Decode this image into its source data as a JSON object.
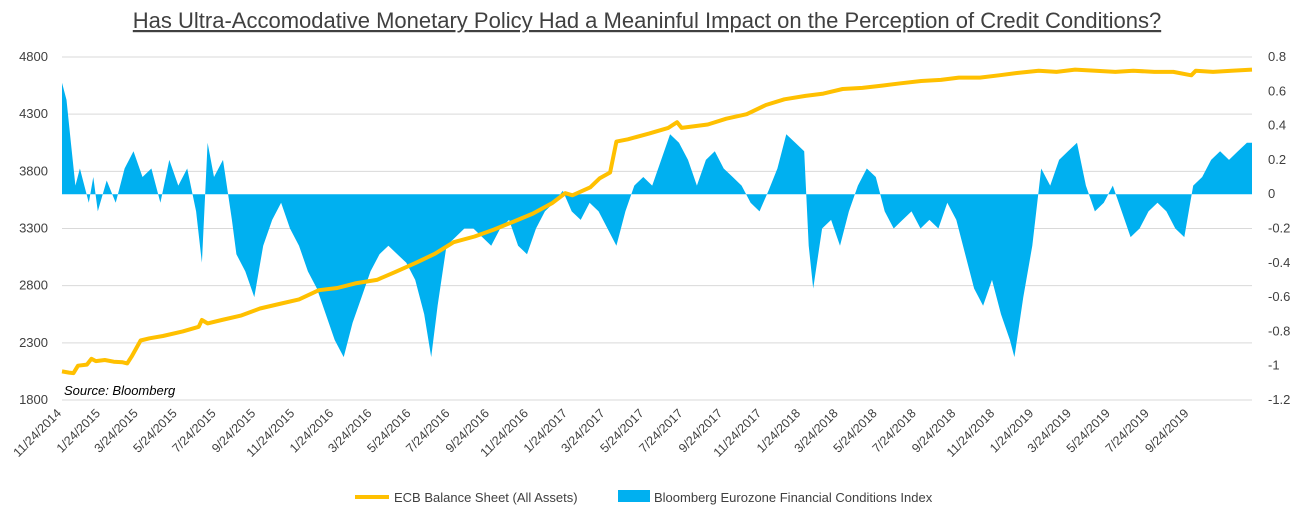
{
  "chart_data": {
    "type": "line",
    "title": "Has Ultra-Accomodative Monetary Policy Had a Meaninful Impact on the Perception of Credit Conditions?",
    "source": "Source: Bloomberg",
    "y_left": {
      "min": 1800,
      "max": 4800,
      "ticks": [
        "4800",
        "4300",
        "3800",
        "3300",
        "2800",
        "2300",
        "1800"
      ]
    },
    "y_right": {
      "min": -1.2,
      "max": 0.8,
      "ticks": [
        "0.8",
        "0.6",
        "0.4",
        "0.2",
        "0",
        "-0.2",
        "-0.4",
        "-0.6",
        "-0.8",
        "-1",
        "-1.2"
      ]
    },
    "x_start": "2014-11-24",
    "x_end": "2019-12-31",
    "x_ticks": [
      "11/24/2014",
      "1/24/2015",
      "3/24/2015",
      "5/24/2015",
      "7/24/2015",
      "9/24/2015",
      "11/24/2015",
      "1/24/2016",
      "3/24/2016",
      "5/24/2016",
      "7/24/2016",
      "9/24/2016",
      "11/24/2016",
      "1/24/2017",
      "3/24/2017",
      "5/24/2017",
      "7/24/2017",
      "9/24/2017",
      "11/24/2017",
      "1/24/2018",
      "3/24/2018",
      "5/24/2018",
      "7/24/2018",
      "9/24/2018",
      "11/24/2018",
      "1/24/2019",
      "3/24/2019",
      "5/24/2019",
      "7/24/2019",
      "9/24/2019"
    ],
    "series": [
      {
        "name": "ECB Balance Sheet (All Assets)",
        "axis": "left",
        "color": "#FFC000",
        "points": [
          [
            "2014-11-24",
            2050
          ],
          [
            "2014-12-05",
            2040
          ],
          [
            "2014-12-12",
            2035
          ],
          [
            "2014-12-19",
            2100
          ],
          [
            "2015-01-02",
            2110
          ],
          [
            "2015-01-09",
            2160
          ],
          [
            "2015-01-16",
            2140
          ],
          [
            "2015-01-30",
            2150
          ],
          [
            "2015-02-13",
            2135
          ],
          [
            "2015-02-27",
            2130
          ],
          [
            "2015-03-06",
            2120
          ],
          [
            "2015-03-13",
            2180
          ],
          [
            "2015-03-27",
            2320
          ],
          [
            "2015-04-10",
            2340
          ],
          [
            "2015-05-01",
            2360
          ],
          [
            "2015-06-01",
            2400
          ],
          [
            "2015-06-26",
            2440
          ],
          [
            "2015-07-01",
            2500
          ],
          [
            "2015-07-10",
            2470
          ],
          [
            "2015-08-01",
            2500
          ],
          [
            "2015-09-01",
            2540
          ],
          [
            "2015-09-30",
            2600
          ],
          [
            "2015-10-30",
            2640
          ],
          [
            "2015-11-30",
            2680
          ],
          [
            "2015-12-31",
            2760
          ],
          [
            "2016-01-29",
            2780
          ],
          [
            "2016-02-26",
            2820
          ],
          [
            "2016-03-31",
            2850
          ],
          [
            "2016-04-29",
            2920
          ],
          [
            "2016-05-31",
            3000
          ],
          [
            "2016-06-30",
            3080
          ],
          [
            "2016-07-29",
            3180
          ],
          [
            "2016-08-31",
            3230
          ],
          [
            "2016-09-30",
            3290
          ],
          [
            "2016-10-31",
            3360
          ],
          [
            "2016-11-30",
            3430
          ],
          [
            "2016-12-30",
            3520
          ],
          [
            "2017-01-20",
            3610
          ],
          [
            "2017-01-31",
            3590
          ],
          [
            "2017-02-28",
            3660
          ],
          [
            "2017-03-15",
            3740
          ],
          [
            "2017-03-31",
            3790
          ],
          [
            "2017-04-10",
            4060
          ],
          [
            "2017-04-28",
            4080
          ],
          [
            "2017-05-31",
            4130
          ],
          [
            "2017-06-30",
            4180
          ],
          [
            "2017-07-14",
            4230
          ],
          [
            "2017-07-21",
            4180
          ],
          [
            "2017-08-31",
            4210
          ],
          [
            "2017-09-29",
            4260
          ],
          [
            "2017-10-31",
            4300
          ],
          [
            "2017-11-30",
            4380
          ],
          [
            "2017-12-29",
            4430
          ],
          [
            "2018-01-31",
            4460
          ],
          [
            "2018-02-28",
            4480
          ],
          [
            "2018-03-30",
            4520
          ],
          [
            "2018-04-30",
            4530
          ],
          [
            "2018-05-31",
            4550
          ],
          [
            "2018-06-29",
            4570
          ],
          [
            "2018-07-31",
            4590
          ],
          [
            "2018-08-31",
            4600
          ],
          [
            "2018-09-28",
            4620
          ],
          [
            "2018-10-31",
            4620
          ],
          [
            "2018-11-30",
            4640
          ],
          [
            "2018-12-28",
            4660
          ],
          [
            "2019-01-31",
            4680
          ],
          [
            "2019-02-28",
            4670
          ],
          [
            "2019-03-29",
            4690
          ],
          [
            "2019-04-30",
            4680
          ],
          [
            "2019-05-31",
            4670
          ],
          [
            "2019-06-28",
            4680
          ],
          [
            "2019-07-31",
            4670
          ],
          [
            "2019-08-30",
            4670
          ],
          [
            "2019-09-27",
            4640
          ],
          [
            "2019-10-04",
            4680
          ],
          [
            "2019-10-31",
            4670
          ],
          [
            "2019-11-29",
            4680
          ],
          [
            "2019-12-31",
            4690
          ]
        ]
      },
      {
        "name": "Bloomberg Eurozone Financial Conditions Index",
        "axis": "right",
        "color": "#00B0F0",
        "points": [
          [
            "2014-11-24",
            0.65
          ],
          [
            "2014-12-01",
            0.55
          ],
          [
            "2014-12-08",
            0.3
          ],
          [
            "2014-12-15",
            0.05
          ],
          [
            "2014-12-22",
            0.15
          ],
          [
            "2015-01-05",
            -0.05
          ],
          [
            "2015-01-12",
            0.1
          ],
          [
            "2015-01-19",
            -0.1
          ],
          [
            "2015-02-02",
            0.08
          ],
          [
            "2015-02-16",
            -0.05
          ],
          [
            "2015-03-02",
            0.15
          ],
          [
            "2015-03-16",
            0.25
          ],
          [
            "2015-03-30",
            0.1
          ],
          [
            "2015-04-13",
            0.15
          ],
          [
            "2015-04-27",
            -0.05
          ],
          [
            "2015-05-11",
            0.2
          ],
          [
            "2015-05-25",
            0.05
          ],
          [
            "2015-06-08",
            0.15
          ],
          [
            "2015-06-22",
            -0.1
          ],
          [
            "2015-07-01",
            -0.4
          ],
          [
            "2015-07-10",
            0.3
          ],
          [
            "2015-07-20",
            0.1
          ],
          [
            "2015-08-03",
            0.2
          ],
          [
            "2015-08-17",
            -0.15
          ],
          [
            "2015-08-24",
            -0.35
          ],
          [
            "2015-09-07",
            -0.45
          ],
          [
            "2015-09-21",
            -0.6
          ],
          [
            "2015-10-05",
            -0.3
          ],
          [
            "2015-10-19",
            -0.15
          ],
          [
            "2015-11-02",
            -0.05
          ],
          [
            "2015-11-16",
            -0.2
          ],
          [
            "2015-11-30",
            -0.3
          ],
          [
            "2015-12-14",
            -0.45
          ],
          [
            "2015-12-28",
            -0.55
          ],
          [
            "2016-01-11",
            -0.7
          ],
          [
            "2016-01-25",
            -0.85
          ],
          [
            "2016-02-08",
            -0.95
          ],
          [
            "2016-02-22",
            -0.75
          ],
          [
            "2016-03-07",
            -0.6
          ],
          [
            "2016-03-21",
            -0.45
          ],
          [
            "2016-04-04",
            -0.35
          ],
          [
            "2016-04-18",
            -0.3
          ],
          [
            "2016-05-02",
            -0.35
          ],
          [
            "2016-05-16",
            -0.4
          ],
          [
            "2016-05-30",
            -0.5
          ],
          [
            "2016-06-13",
            -0.7
          ],
          [
            "2016-06-24",
            -0.95
          ],
          [
            "2016-07-04",
            -0.65
          ],
          [
            "2016-07-18",
            -0.3
          ],
          [
            "2016-08-01",
            -0.25
          ],
          [
            "2016-08-15",
            -0.2
          ],
          [
            "2016-08-29",
            -0.2
          ],
          [
            "2016-09-12",
            -0.25
          ],
          [
            "2016-09-26",
            -0.3
          ],
          [
            "2016-10-10",
            -0.2
          ],
          [
            "2016-10-24",
            -0.15
          ],
          [
            "2016-11-07",
            -0.3
          ],
          [
            "2016-11-21",
            -0.35
          ],
          [
            "2016-12-05",
            -0.2
          ],
          [
            "2016-12-19",
            -0.1
          ],
          [
            "2017-01-02",
            -0.05
          ],
          [
            "2017-01-16",
            0.02
          ],
          [
            "2017-01-30",
            -0.1
          ],
          [
            "2017-02-13",
            -0.15
          ],
          [
            "2017-02-27",
            -0.05
          ],
          [
            "2017-03-13",
            -0.1
          ],
          [
            "2017-03-27",
            -0.2
          ],
          [
            "2017-04-10",
            -0.3
          ],
          [
            "2017-04-24",
            -0.1
          ],
          [
            "2017-05-08",
            0.05
          ],
          [
            "2017-05-22",
            0.1
          ],
          [
            "2017-06-05",
            0.05
          ],
          [
            "2017-06-19",
            0.2
          ],
          [
            "2017-07-03",
            0.35
          ],
          [
            "2017-07-17",
            0.3
          ],
          [
            "2017-07-31",
            0.2
          ],
          [
            "2017-08-14",
            0.05
          ],
          [
            "2017-08-28",
            0.2
          ],
          [
            "2017-09-11",
            0.25
          ],
          [
            "2017-09-25",
            0.15
          ],
          [
            "2017-10-09",
            0.1
          ],
          [
            "2017-10-23",
            0.05
          ],
          [
            "2017-11-06",
            -0.05
          ],
          [
            "2017-11-20",
            -0.1
          ],
          [
            "2017-12-04",
            0.02
          ],
          [
            "2017-12-18",
            0.15
          ],
          [
            "2018-01-01",
            0.35
          ],
          [
            "2018-01-15",
            0.3
          ],
          [
            "2018-01-29",
            0.25
          ],
          [
            "2018-02-05",
            -0.3
          ],
          [
            "2018-02-12",
            -0.55
          ],
          [
            "2018-02-26",
            -0.2
          ],
          [
            "2018-03-12",
            -0.15
          ],
          [
            "2018-03-26",
            -0.3
          ],
          [
            "2018-04-09",
            -0.1
          ],
          [
            "2018-04-23",
            0.05
          ],
          [
            "2018-05-07",
            0.15
          ],
          [
            "2018-05-21",
            0.1
          ],
          [
            "2018-06-04",
            -0.1
          ],
          [
            "2018-06-18",
            -0.2
          ],
          [
            "2018-07-02",
            -0.15
          ],
          [
            "2018-07-16",
            -0.1
          ],
          [
            "2018-07-30",
            -0.2
          ],
          [
            "2018-08-13",
            -0.15
          ],
          [
            "2018-08-27",
            -0.2
          ],
          [
            "2018-09-10",
            -0.05
          ],
          [
            "2018-09-24",
            -0.15
          ],
          [
            "2018-10-08",
            -0.35
          ],
          [
            "2018-10-22",
            -0.55
          ],
          [
            "2018-11-05",
            -0.65
          ],
          [
            "2018-11-19",
            -0.5
          ],
          [
            "2018-12-03",
            -0.7
          ],
          [
            "2018-12-17",
            -0.85
          ],
          [
            "2018-12-24",
            -0.95
          ],
          [
            "2019-01-07",
            -0.6
          ],
          [
            "2019-01-21",
            -0.3
          ],
          [
            "2019-02-04",
            0.15
          ],
          [
            "2019-02-18",
            0.05
          ],
          [
            "2019-03-04",
            0.2
          ],
          [
            "2019-03-18",
            0.25
          ],
          [
            "2019-04-01",
            0.3
          ],
          [
            "2019-04-15",
            0.05
          ],
          [
            "2019-04-29",
            -0.1
          ],
          [
            "2019-05-13",
            -0.05
          ],
          [
            "2019-05-27",
            0.05
          ],
          [
            "2019-06-10",
            -0.1
          ],
          [
            "2019-06-24",
            -0.25
          ],
          [
            "2019-07-08",
            -0.2
          ],
          [
            "2019-07-22",
            -0.1
          ],
          [
            "2019-08-05",
            -0.05
          ],
          [
            "2019-08-19",
            -0.1
          ],
          [
            "2019-09-02",
            -0.2
          ],
          [
            "2019-09-16",
            -0.25
          ],
          [
            "2019-09-30",
            0.05
          ],
          [
            "2019-10-14",
            0.1
          ],
          [
            "2019-10-28",
            0.2
          ],
          [
            "2019-11-11",
            0.25
          ],
          [
            "2019-11-25",
            0.2
          ],
          [
            "2019-12-09",
            0.25
          ],
          [
            "2019-12-23",
            0.3
          ],
          [
            "2019-12-31",
            0.3
          ]
        ]
      }
    ]
  }
}
